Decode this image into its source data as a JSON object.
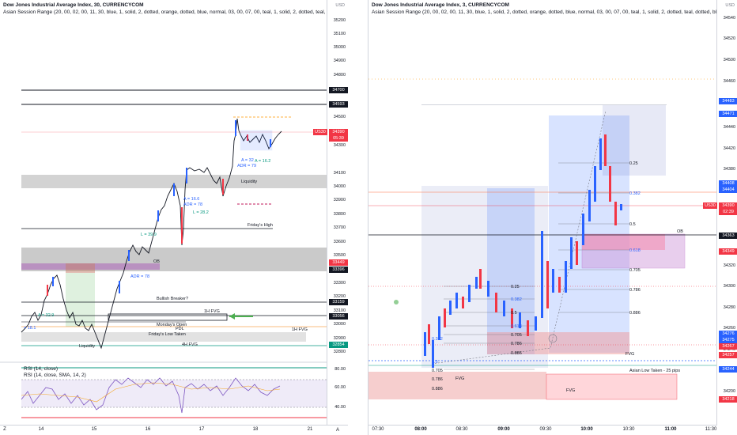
{
  "left_chart": {
    "title": "Dow Jones Industrial Average Index, 30, CURRENCYCOM",
    "subtitle": "Asian Session Range (20, 00, 02, 00, 11, 30, blue, 1, solid, 2, dotted, orange, dotted, blue, normal, 03, 00, 07, 00, teal, 1, solid, 2, dotted, teal, dotted",
    "currency": "USD",
    "price_ticks": [
      "35200",
      "35100",
      "35000",
      "34900",
      "34800",
      "34600",
      "34500",
      "34400",
      "34300",
      "34100",
      "34000",
      "33900",
      "33800",
      "33700",
      "33600",
      "33500",
      "33300",
      "33200",
      "33100",
      "33000",
      "32900",
      "32800"
    ],
    "price_tags": [
      {
        "text": "34700",
        "color": "#131722"
      },
      {
        "text": "34593",
        "color": "#131722"
      },
      {
        "text": "US30",
        "color": "#f23645"
      },
      {
        "text": "34390",
        "color": "#f23645"
      },
      {
        "text": "05:39",
        "color": "#f23645"
      },
      {
        "text": "33449",
        "color": "#f23645"
      },
      {
        "text": "33396",
        "color": "#131722"
      },
      {
        "text": "33159",
        "color": "#131722"
      },
      {
        "text": "33056",
        "color": "#131722"
      },
      {
        "text": "32854",
        "color": "#089981"
      }
    ],
    "annotations": [
      "Liquidity",
      "Friday's High",
      "OB",
      "Bullish Breaker?",
      "1H FVG",
      "Monday's Open",
      "PDL",
      "Friday's Low Taken",
      "4H FVG",
      "Liquidity",
      "1H FVG",
      "A = 32",
      "ADR = 79",
      "A = 16.2",
      "A = 16.6",
      "ADR = 78",
      "L = 28.2",
      "L = 39.9",
      "ADR = 78",
      "A = 32.9",
      "= 18.1"
    ],
    "time_labels": [
      "14",
      "15",
      "16",
      "17",
      "18",
      "21"
    ],
    "rsi_title": "RSI (14, close)",
    "rsi_sub": "RSI (14, close, SMA, 14, 2)",
    "rsi_ticks": [
      "80.00",
      "60.00",
      "40.00"
    ],
    "corner_z": "Z",
    "corner_a": "A"
  },
  "right_chart": {
    "title": "Dow Jones Industrial Average Index, 3, CURRENCYCOM",
    "subtitle": "Asian Session Range (20, 00, 02, 00, 11, 30, blue, 1, solid, 2, dotted, orange, dotted, blue, normal, 03, 00, 07, 00, teal, 1, solid, 2, dotted, teal, dotted, blue",
    "currency": "USD",
    "price_ticks": [
      "34540",
      "34520",
      "34500",
      "34460",
      "34440",
      "34420",
      "34380",
      "34340",
      "34320",
      "34300",
      "34280",
      "34260",
      "34240",
      "34200"
    ],
    "price_tags": [
      {
        "text": "34483",
        "color": "#2962ff"
      },
      {
        "text": "34471",
        "color": "#2962ff"
      },
      {
        "text": "34408",
        "color": "#2962ff"
      },
      {
        "text": "34404",
        "color": "#2962ff"
      },
      {
        "text": "US30",
        "color": "#f23645"
      },
      {
        "text": "34390",
        "color": "#f23645"
      },
      {
        "text": "02:39",
        "color": "#f23645"
      },
      {
        "text": "34363",
        "color": "#131722"
      },
      {
        "text": "34349",
        "color": "#f23645"
      },
      {
        "text": "34276",
        "color": "#2962ff"
      },
      {
        "text": "34275",
        "color": "#2962ff"
      },
      {
        "text": "34267",
        "color": "#f23645"
      },
      {
        "text": "34257",
        "color": "#f23645"
      },
      {
        "text": "34244",
        "color": "#2962ff"
      },
      {
        "text": "34218",
        "color": "#f23645"
      }
    ],
    "fib_labels": [
      "0.25",
      "0.382",
      "0.5",
      "0.618",
      "0.705",
      "0.786",
      "0.886",
      "0.25",
      "0.382",
      "0.5",
      "0.618",
      "0.705",
      "0.786",
      "0.886",
      "0.705",
      "0.786",
      "0.886",
      "0.382",
      "0.5"
    ],
    "annotations": [
      "OB",
      "FVG",
      "Asian Low Taken - 25 pips",
      "FVG",
      "FVG"
    ],
    "time_labels": [
      "07:30",
      "08:00",
      "08:30",
      "09:00",
      "09:30",
      "10:00",
      "10:30",
      "11:00",
      "11:30"
    ]
  }
}
